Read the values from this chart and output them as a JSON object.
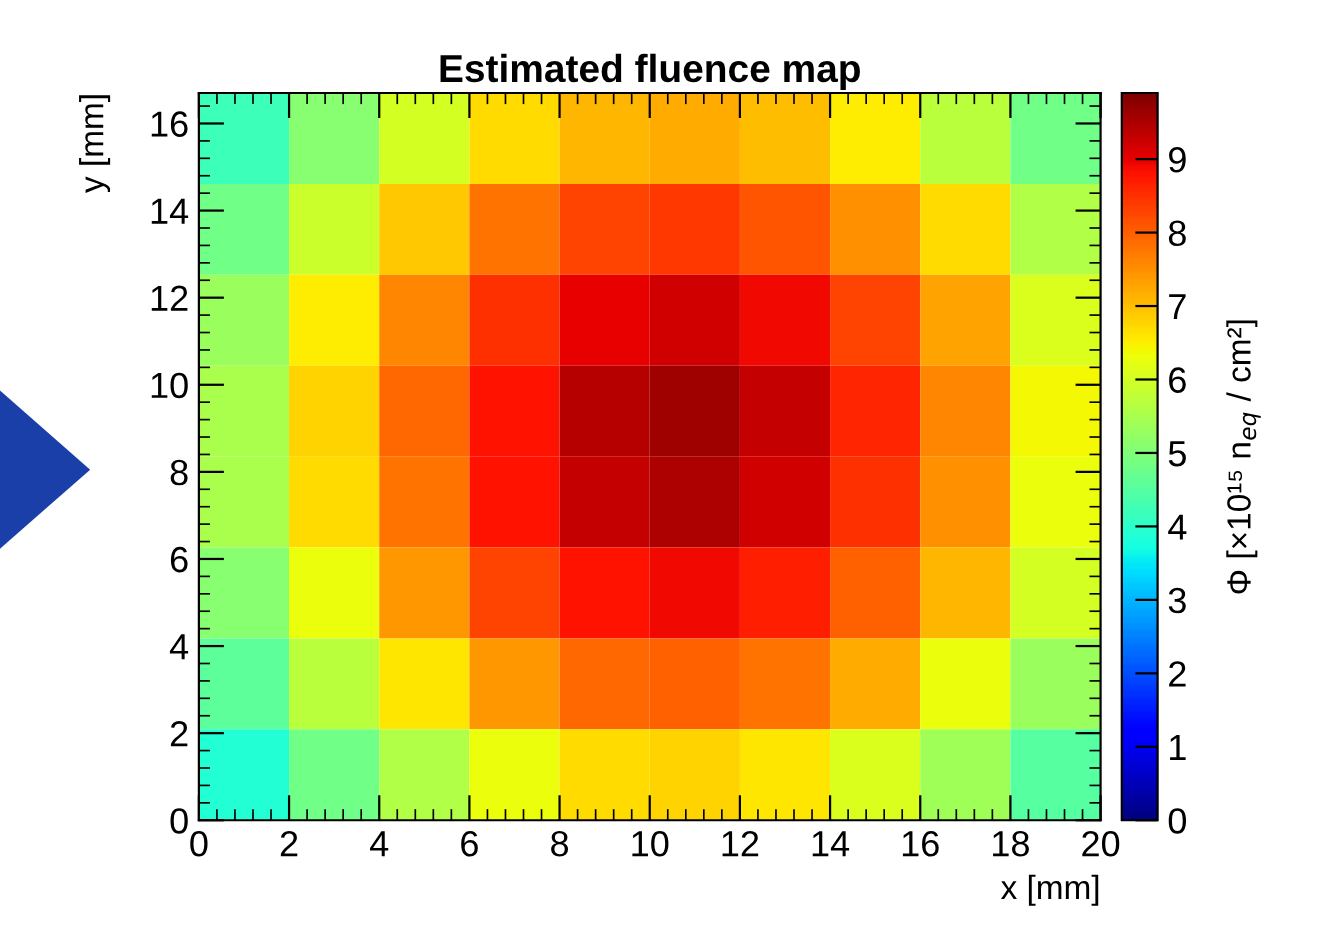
{
  "chart_data": {
    "type": "heatmap",
    "title": "Estimated fluence map",
    "xlabel": "x [mm]",
    "ylabel": "y [mm]",
    "clabel": "Φ [×10¹⁵ n$_{eq}$ / cm²]",
    "cells": [
      [
        4.2,
        5.1,
        6.0,
        6.7,
        7.1,
        7.2,
        7.0,
        6.5,
        5.7,
        4.8
      ],
      [
        4.8,
        5.9,
        6.9,
        7.8,
        8.3,
        8.4,
        8.1,
        7.5,
        6.7,
        5.6
      ],
      [
        5.3,
        6.5,
        7.6,
        8.5,
        9.0,
        9.2,
        8.9,
        8.3,
        7.3,
        6.1
      ],
      [
        5.5,
        6.8,
        7.9,
        8.8,
        9.4,
        9.6,
        9.3,
        8.6,
        7.6,
        6.4
      ],
      [
        5.5,
        6.7,
        7.8,
        8.8,
        9.3,
        9.5,
        9.2,
        8.5,
        7.5,
        6.3
      ],
      [
        5.1,
        6.3,
        7.4,
        8.3,
        8.8,
        8.9,
        8.7,
        8.0,
        7.1,
        6.0
      ],
      [
        4.6,
        5.7,
        6.6,
        7.4,
        7.9,
        8.0,
        7.8,
        7.2,
        6.3,
        5.3
      ],
      [
        3.9,
        4.8,
        5.6,
        6.3,
        6.7,
        6.8,
        6.6,
        6.1,
        5.4,
        4.5
      ]
    ],
    "xlim": [
      0,
      20
    ],
    "xticks": [
      0,
      2,
      4,
      6,
      8,
      10,
      12,
      14,
      16,
      18,
      20
    ],
    "ylim": [
      0,
      16.7
    ],
    "yticks": [
      0,
      2,
      4,
      6,
      8,
      10,
      12,
      14,
      16
    ],
    "clim": [
      0,
      9.9
    ],
    "cticks": [
      0,
      1,
      2,
      3,
      4,
      5,
      6,
      7,
      8,
      9
    ]
  }
}
